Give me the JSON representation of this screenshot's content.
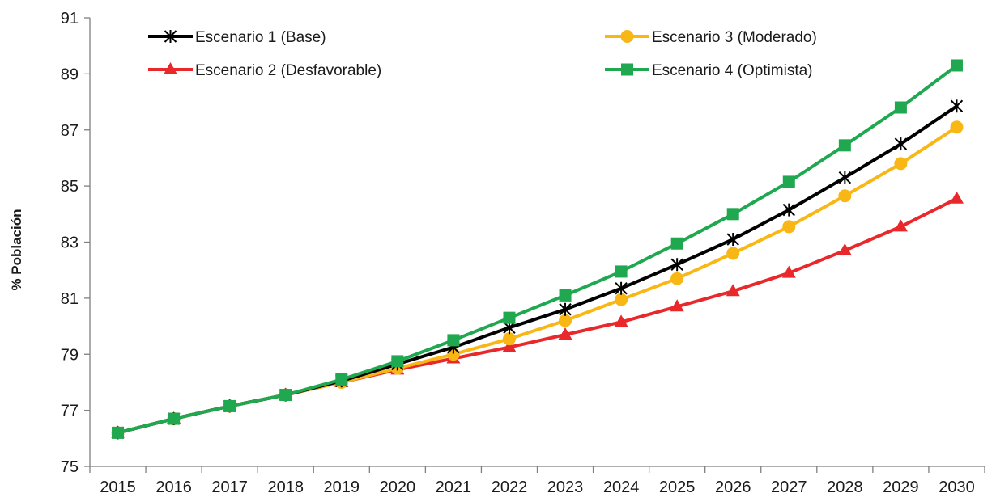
{
  "chart_data": {
    "type": "line",
    "title": "",
    "xlabel": "",
    "ylabel": "% Población",
    "ylim": [
      75,
      91
    ],
    "yticks": [
      "75",
      "77",
      "79",
      "81",
      "83",
      "85",
      "87",
      "89",
      "91"
    ],
    "categories": [
      "2015",
      "2016",
      "2017",
      "2018",
      "2019",
      "2020",
      "2021",
      "2022",
      "2023",
      "2024",
      "2025",
      "2026",
      "2027",
      "2028",
      "2029",
      "2030"
    ],
    "grid": false,
    "legend_position": "top",
    "series": [
      {
        "name": "Escenario 1 (Base)",
        "color": "#000000",
        "marker": "asterisk",
        "values": [
          76.2,
          76.7,
          77.15,
          77.55,
          78.05,
          78.65,
          79.25,
          79.95,
          80.6,
          81.35,
          82.2,
          83.1,
          84.15,
          85.3,
          86.5,
          87.85
        ]
      },
      {
        "name": "Escenario 2 (Desfavorable)",
        "color": "#e8282b",
        "marker": "triangle",
        "values": [
          76.2,
          76.7,
          77.15,
          77.55,
          78.0,
          78.45,
          78.85,
          79.25,
          79.7,
          80.15,
          80.7,
          81.25,
          81.9,
          82.7,
          83.55,
          84.55
        ]
      },
      {
        "name": "Escenario 3 (Moderado)",
        "color": "#f9b715",
        "marker": "circle",
        "values": [
          76.2,
          76.7,
          77.15,
          77.55,
          78.0,
          78.5,
          79.0,
          79.55,
          80.2,
          80.95,
          81.7,
          82.6,
          83.55,
          84.65,
          85.8,
          87.1
        ]
      },
      {
        "name": "Escenario 4 (Optimista)",
        "color": "#1fa84f",
        "marker": "square",
        "values": [
          76.2,
          76.7,
          77.15,
          77.55,
          78.1,
          78.75,
          79.5,
          80.3,
          81.1,
          81.95,
          82.95,
          84.0,
          85.15,
          86.45,
          87.8,
          89.3
        ]
      }
    ]
  }
}
